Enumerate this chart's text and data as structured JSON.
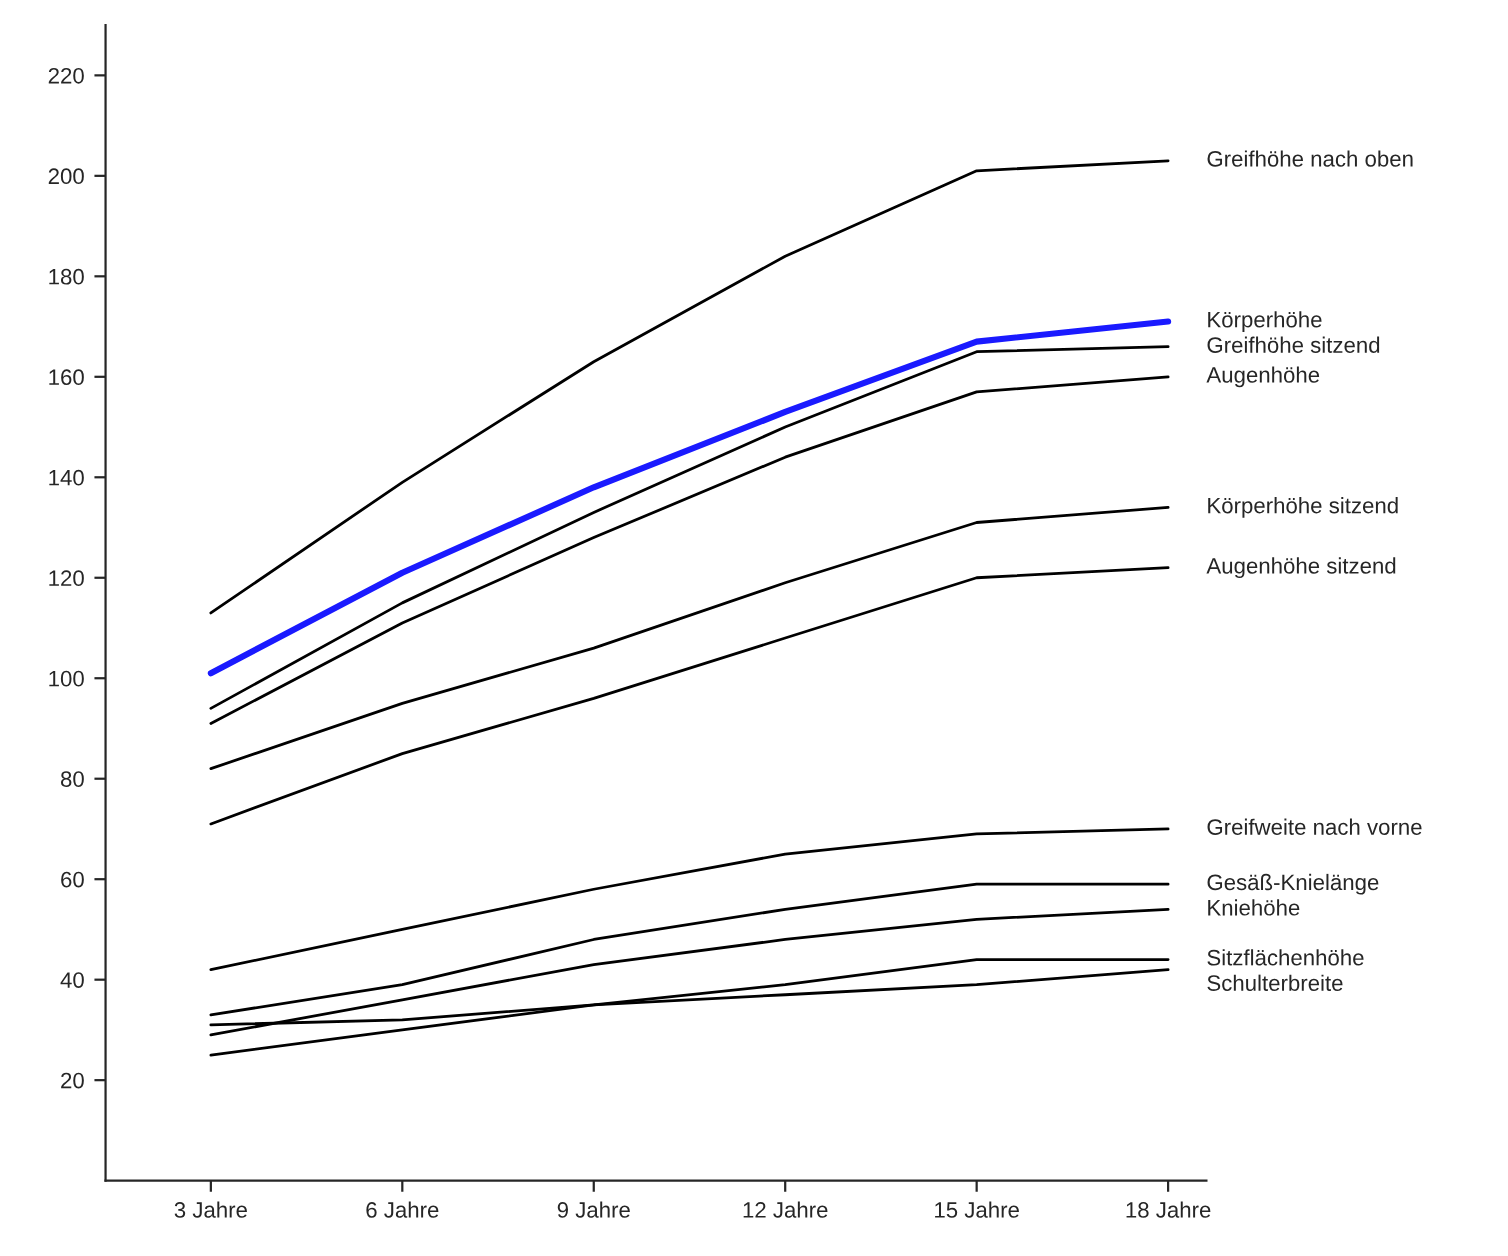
{
  "chart_data": {
    "type": "line",
    "categories": [
      "3 Jahre",
      "6 Jahre",
      "9 Jahre",
      "12 Jahre",
      "15 Jahre",
      "18 Jahre"
    ],
    "ylim": [
      0,
      230
    ],
    "yticks": [
      20,
      40,
      60,
      80,
      100,
      120,
      140,
      160,
      180,
      200,
      220
    ],
    "grid": false,
    "legend": false,
    "marker": "none",
    "line_style": "solid",
    "series": [
      {
        "name": "Greifhöhe nach oben",
        "color": "#000000",
        "values": [
          113,
          139,
          163,
          184,
          201,
          203
        ]
      },
      {
        "name": "Körperhöhe",
        "color": "#1a1aff",
        "values": [
          101,
          121,
          138,
          153,
          167,
          171
        ]
      },
      {
        "name": "Greifhöhe sitzend",
        "color": "#000000",
        "values": [
          94,
          115,
          133,
          150,
          165,
          166
        ]
      },
      {
        "name": "Augenhöhe",
        "color": "#000000",
        "values": [
          91,
          111,
          128,
          144,
          157,
          160
        ]
      },
      {
        "name": "Körperhöhe sitzend",
        "color": "#000000",
        "values": [
          82,
          95,
          106,
          119,
          131,
          134
        ]
      },
      {
        "name": "Augenhöhe sitzend",
        "color": "#000000",
        "values": [
          71,
          85,
          96,
          108,
          120,
          122
        ]
      },
      {
        "name": "Greifweite nach vorne",
        "color": "#000000",
        "values": [
          42,
          50,
          58,
          65,
          69,
          70
        ]
      },
      {
        "name": "Gesäß-Knielänge",
        "color": "#000000",
        "values": [
          33,
          39,
          48,
          54,
          59,
          59
        ]
      },
      {
        "name": "Kniehöhe",
        "color": "#000000",
        "values": [
          29,
          36,
          43,
          48,
          52,
          54
        ]
      },
      {
        "name": "Sitzflächenhöhe",
        "color": "#000000",
        "values": [
          31,
          32,
          35,
          39,
          44,
          44
        ]
      },
      {
        "name": "Schulterbreite",
        "color": "#000000",
        "values": [
          25,
          30,
          35,
          37,
          39,
          42
        ]
      }
    ]
  }
}
